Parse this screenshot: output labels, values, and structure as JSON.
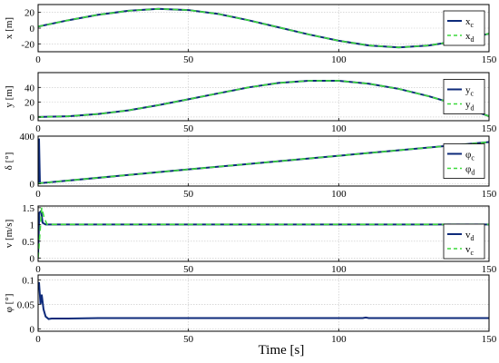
{
  "colors": {
    "command": "#0d2a7a",
    "desired": "#3cd93c"
  },
  "figure": {
    "xlabel": "Time [s]"
  },
  "chart_data": [
    {
      "type": "line",
      "ylabel": "x [m]",
      "xlim": [
        0,
        150
      ],
      "ylim": [
        -30,
        30
      ],
      "xticks": [
        "0",
        "50",
        "100",
        "150"
      ],
      "yticks": [
        {
          "value": 20,
          "label": "20"
        },
        {
          "value": 0,
          "label": "0"
        },
        {
          "value": -20,
          "label": "-20"
        }
      ],
      "grid": true,
      "legend": {
        "placement": "right",
        "entries": [
          {
            "base": "x",
            "sub": "c",
            "style": "solid",
            "colorKey": "command"
          },
          {
            "base": "x",
            "sub": "d",
            "style": "dashed",
            "colorKey": "desired"
          }
        ]
      },
      "series": [
        {
          "label": "x_c",
          "colorKey": "command",
          "style": "solid",
          "x": [
            0,
            10,
            20,
            30,
            40,
            50,
            60,
            70,
            80,
            90,
            100,
            110,
            120,
            130,
            140,
            150
          ],
          "y": [
            2,
            10,
            17,
            22,
            24.5,
            23,
            18,
            10,
            1,
            -8,
            -16,
            -22,
            -24.5,
            -22,
            -16,
            -7
          ]
        },
        {
          "label": "x_d",
          "colorKey": "desired",
          "style": "dashed",
          "x": [
            0,
            10,
            20,
            30,
            40,
            50,
            60,
            70,
            80,
            90,
            100,
            110,
            120,
            130,
            140,
            150
          ],
          "y": [
            2,
            10,
            17,
            22,
            24.5,
            23,
            18,
            10,
            1,
            -8,
            -16,
            -22,
            -24.5,
            -22,
            -16,
            -7
          ]
        }
      ]
    },
    {
      "type": "line",
      "ylabel": "y [m]",
      "xlim": [
        0,
        150
      ],
      "ylim": [
        -5,
        60
      ],
      "xticks": [
        "0",
        "50",
        "100",
        "150"
      ],
      "yticks": [
        {
          "value": 40,
          "label": "40"
        },
        {
          "value": 20,
          "label": "20"
        },
        {
          "value": 0,
          "label": "0"
        }
      ],
      "grid": true,
      "legend": {
        "placement": "right",
        "entries": [
          {
            "base": "y",
            "sub": "c",
            "style": "solid",
            "colorKey": "command"
          },
          {
            "base": "y",
            "sub": "d",
            "style": "dashed",
            "colorKey": "desired"
          }
        ]
      },
      "series": [
        {
          "label": "y_c",
          "colorKey": "command",
          "style": "solid",
          "x": [
            0,
            10,
            20,
            30,
            40,
            50,
            60,
            70,
            80,
            90,
            100,
            110,
            120,
            130,
            140,
            150
          ],
          "y": [
            0,
            1,
            4,
            9,
            16,
            24,
            32,
            40,
            46,
            49,
            49,
            45,
            38,
            28,
            16,
            1
          ]
        },
        {
          "label": "y_d",
          "colorKey": "desired",
          "style": "dashed",
          "x": [
            0,
            10,
            20,
            30,
            40,
            50,
            60,
            70,
            80,
            90,
            100,
            110,
            120,
            130,
            140,
            150
          ],
          "y": [
            0,
            1,
            4,
            9,
            16,
            24,
            32,
            40,
            46,
            49,
            49,
            45,
            38,
            28,
            16,
            1
          ]
        }
      ]
    },
    {
      "type": "line",
      "ylabel": "δ [°]",
      "xlim": [
        0,
        150
      ],
      "ylim": [
        -20,
        400
      ],
      "xticks": [
        "0",
        "50",
        "100",
        "150"
      ],
      "yticks": [
        {
          "value": 400,
          "label": "400"
        },
        {
          "value": 0,
          "label": "0"
        }
      ],
      "grid": true,
      "legend": {
        "placement": "right",
        "entries": [
          {
            "base": "φ",
            "sub": "c",
            "style": "solid",
            "colorKey": "command"
          },
          {
            "base": "φ",
            "sub": "d",
            "style": "dashed",
            "colorKey": "desired"
          }
        ]
      },
      "series": [
        {
          "label": "φ_c",
          "colorKey": "command",
          "style": "solid",
          "x": [
            0,
            0.3,
            0.6,
            1,
            50,
            100,
            150
          ],
          "y": [
            0,
            380,
            10,
            5,
            120,
            235,
            350
          ]
        },
        {
          "label": "φ_d",
          "colorKey": "desired",
          "style": "dashed",
          "x": [
            0,
            1,
            50,
            100,
            150
          ],
          "y": [
            0,
            5,
            120,
            235,
            350
          ]
        }
      ]
    },
    {
      "type": "line",
      "ylabel": "v [m/s]",
      "xlim": [
        0,
        150
      ],
      "ylim": [
        -0.1,
        1.55
      ],
      "xticks": [
        "0",
        "50",
        "100",
        "150"
      ],
      "yticks": [
        {
          "value": 1.5,
          "label": "1.5"
        },
        {
          "value": 1,
          "label": "1"
        },
        {
          "value": 0.5,
          "label": "0.5"
        },
        {
          "value": 0,
          "label": "0"
        }
      ],
      "grid": true,
      "legend": {
        "placement": "right",
        "entries": [
          {
            "base": "v",
            "sub": "d",
            "style": "solid",
            "colorKey": "command"
          },
          {
            "base": "v",
            "sub": "c",
            "style": "dashed",
            "colorKey": "desired"
          }
        ]
      },
      "series": [
        {
          "label": "v_d",
          "colorKey": "command",
          "style": "solid",
          "x": [
            0,
            0.4,
            1,
            1.5,
            2.5,
            150
          ],
          "y": [
            0.1,
            1.35,
            1.4,
            1.05,
            1.0,
            1.0
          ]
        },
        {
          "label": "v_c",
          "colorKey": "desired",
          "style": "dashed",
          "x": [
            0,
            0.5,
            1.2,
            2,
            3,
            150
          ],
          "y": [
            0,
            0.6,
            1.5,
            1.2,
            1.0,
            1.0
          ]
        }
      ]
    },
    {
      "type": "line",
      "ylabel": "φ [°]",
      "xlim": [
        0,
        150
      ],
      "ylim": [
        -0.005,
        0.11
      ],
      "xticks": [
        "0",
        "50",
        "100",
        "150"
      ],
      "yticks": [
        {
          "value": 0.1,
          "label": "0.1"
        },
        {
          "value": 0.05,
          "label": "0.05"
        },
        {
          "value": 0,
          "label": "0"
        }
      ],
      "grid": true,
      "legend": null,
      "series": [
        {
          "label": "φ",
          "colorKey": "command",
          "style": "solid",
          "x": [
            0,
            0.3,
            0.8,
            1.2,
            1.8,
            2.5,
            3.5,
            4.5,
            10,
            20,
            50,
            100,
            108,
            109,
            110,
            111,
            150
          ],
          "y": [
            0.09,
            0.095,
            0.05,
            0.07,
            0.04,
            0.025,
            0.02,
            0.021,
            0.021,
            0.022,
            0.022,
            0.022,
            0.022,
            0.023,
            0.022,
            0.022,
            0.022
          ]
        }
      ]
    }
  ]
}
